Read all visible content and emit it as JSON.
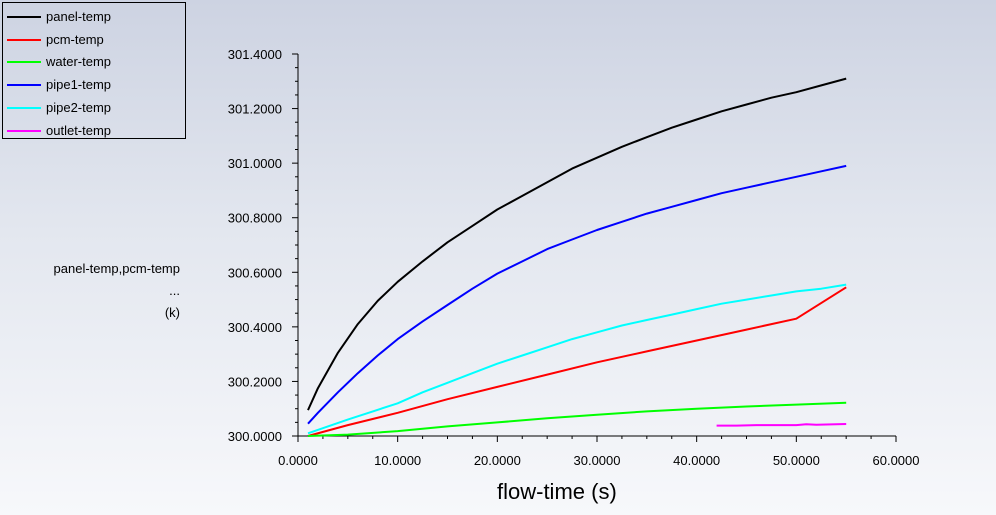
{
  "chart_data": {
    "type": "line",
    "xlabel": "flow-time (s)",
    "ylabel_lines": [
      "panel-temp,pcm-temp",
      "...",
      "(k)"
    ],
    "xlim": [
      0,
      60
    ],
    "ylim": [
      300.0,
      301.4
    ],
    "x_ticks": [
      0,
      10,
      20,
      30,
      40,
      50,
      60
    ],
    "x_tick_labels": [
      "0.0000",
      "10.0000",
      "20.0000",
      "30.0000",
      "40.0000",
      "50.0000",
      "60.0000"
    ],
    "y_ticks": [
      300.0,
      300.2,
      300.4,
      300.6,
      300.8,
      301.0,
      301.2,
      301.4
    ],
    "y_tick_labels": [
      "300.0000",
      "300.2000",
      "300.4000",
      "300.6000",
      "300.8000",
      "301.0000",
      "301.2000",
      "301.4000"
    ],
    "grid": false,
    "legend_position": "top-left",
    "series": [
      {
        "name": "panel-temp",
        "color": "#000000",
        "x": [
          1,
          2,
          4,
          6,
          8,
          10,
          12.5,
          15,
          17.5,
          20,
          22.5,
          25,
          27.5,
          30,
          32.5,
          35,
          37.5,
          40,
          42.5,
          45,
          47.5,
          50,
          52.5,
          55
        ],
        "y": [
          300.095,
          300.175,
          300.305,
          300.41,
          300.495,
          300.565,
          300.64,
          300.71,
          300.77,
          300.83,
          300.88,
          300.93,
          300.98,
          301.02,
          301.06,
          301.095,
          301.13,
          301.16,
          301.19,
          301.215,
          301.24,
          301.26,
          301.285,
          301.31
        ]
      },
      {
        "name": "pcm-temp",
        "color": "#ff0000",
        "x": [
          1,
          5,
          10,
          15,
          20,
          25,
          30,
          35,
          40,
          45,
          50,
          55
        ],
        "y": [
          300.0,
          300.04,
          300.085,
          300.135,
          300.18,
          300.225,
          300.27,
          300.31,
          300.35,
          300.39,
          300.43,
          300.545
        ]
      },
      {
        "name": "water-temp",
        "color": "#00ff00",
        "x": [
          1,
          5,
          10,
          15,
          20,
          25,
          30,
          35,
          40,
          45,
          50,
          55
        ],
        "y": [
          300.0,
          300.005,
          300.018,
          300.035,
          300.05,
          300.065,
          300.078,
          300.09,
          300.1,
          300.108,
          300.115,
          300.122
        ]
      },
      {
        "name": "pipe1-temp",
        "color": "#0000ff",
        "x": [
          1,
          2,
          4,
          6,
          8,
          10,
          12.5,
          15,
          17.5,
          20,
          22.5,
          25,
          27.5,
          30,
          32.5,
          35,
          37.5,
          40,
          42.5,
          45,
          47.5,
          50,
          52.5,
          55
        ],
        "y": [
          300.045,
          300.085,
          300.16,
          300.23,
          300.295,
          300.355,
          300.42,
          300.48,
          300.54,
          300.595,
          300.64,
          300.685,
          300.72,
          300.755,
          300.785,
          300.815,
          300.84,
          300.865,
          300.89,
          300.91,
          300.93,
          300.95,
          300.97,
          300.99
        ]
      },
      {
        "name": "pipe2-temp",
        "color": "#00ffff",
        "x": [
          1,
          3,
          5,
          7.5,
          10,
          12.5,
          15,
          17.5,
          20,
          22.5,
          25,
          27.5,
          30,
          32.5,
          35,
          37.5,
          40,
          42.5,
          45,
          47.5,
          50,
          52.5,
          55
        ],
        "y": [
          300.01,
          300.035,
          300.06,
          300.09,
          300.12,
          300.16,
          300.195,
          300.23,
          300.265,
          300.295,
          300.325,
          300.355,
          300.38,
          300.405,
          300.425,
          300.445,
          300.465,
          300.485,
          300.5,
          300.515,
          300.53,
          300.54,
          300.555
        ]
      },
      {
        "name": "outlet-temp",
        "color": "#ff00ff",
        "x": [
          42,
          44,
          46,
          48,
          50,
          51,
          52,
          53,
          55
        ],
        "y": [
          300.038,
          300.038,
          300.04,
          300.04,
          300.04,
          300.043,
          300.041,
          300.042,
          300.044
        ]
      }
    ]
  }
}
